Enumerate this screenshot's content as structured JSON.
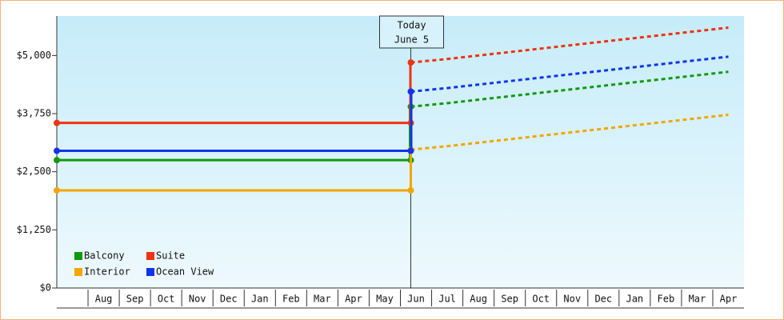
{
  "chart_data": {
    "type": "line",
    "categories": [
      null,
      "Aug",
      "Sep",
      "Oct",
      "Nov",
      "Dec",
      "Jan",
      "Feb",
      "Mar",
      "Apr",
      "May",
      "Jun",
      "Jul",
      "Aug",
      "Sep",
      "Oct",
      "Nov",
      "Dec",
      "Jan",
      "Feb",
      "Mar",
      "Apr"
    ],
    "annotation": [
      "Today",
      "June 5"
    ],
    "ylim": [
      0,
      5850
    ],
    "yticks": [
      {
        "value": 0,
        "label": "$0"
      },
      {
        "value": 1250,
        "label": "$1,250"
      },
      {
        "value": 2500,
        "label": "$2,500"
      },
      {
        "value": 3750,
        "label": "$3,750"
      },
      {
        "value": 5000,
        "label": "$5,000"
      }
    ],
    "series": [
      {
        "name": "Balcony",
        "color": "#119911",
        "values": [
          2750,
          2750,
          2750,
          2750,
          2750,
          2750,
          2750,
          2750,
          2750,
          2750,
          2750,
          3900,
          3975,
          4050,
          4125,
          4200,
          4275,
          4350,
          4425,
          4500,
          4575,
          4650
        ]
      },
      {
        "name": "Suite",
        "color": "#ee3311",
        "values": [
          3550,
          3550,
          3550,
          3550,
          3550,
          3550,
          3550,
          3550,
          3550,
          3550,
          3550,
          4850,
          4925,
          5000,
          5075,
          5150,
          5225,
          5300,
          5375,
          5450,
          5525,
          5600
        ]
      },
      {
        "name": "Interior",
        "color": "#f5a500",
        "values": [
          2100,
          2100,
          2100,
          2100,
          2100,
          2100,
          2100,
          2100,
          2100,
          2100,
          2100,
          2975,
          3050,
          3125,
          3200,
          3275,
          3350,
          3425,
          3500,
          3575,
          3650,
          3725
        ]
      },
      {
        "name": "Ocean View",
        "color": "#1133ee",
        "values": [
          2950,
          2950,
          2950,
          2950,
          2950,
          2950,
          2950,
          2950,
          2950,
          2950,
          2950,
          4225,
          4300,
          4375,
          4450,
          4525,
          4600,
          4675,
          4750,
          4825,
          4900,
          4975
        ]
      }
    ],
    "legend": "lower left"
  }
}
